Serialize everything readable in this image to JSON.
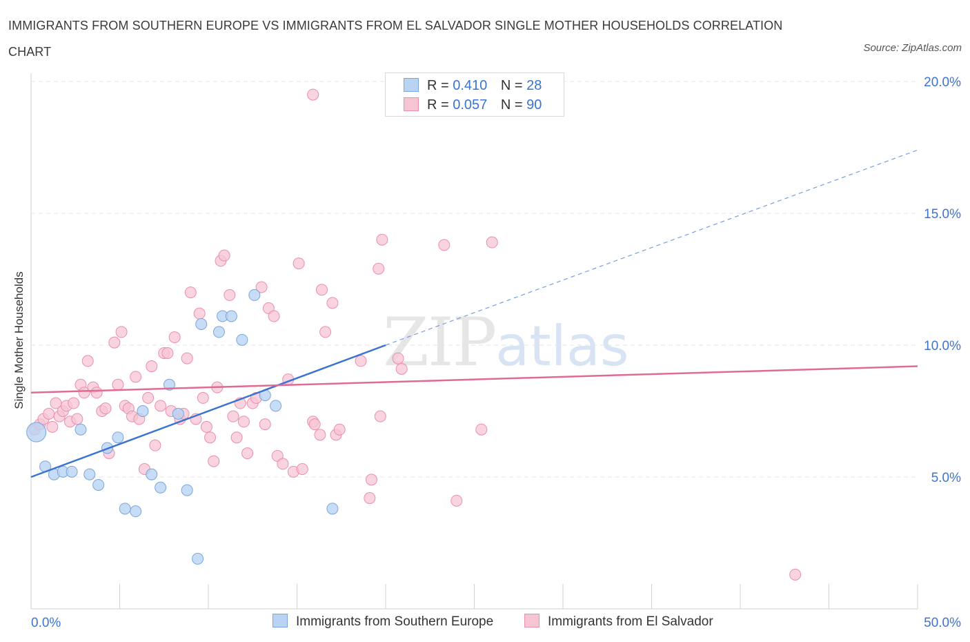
{
  "title": "IMMIGRANTS FROM SOUTHERN EUROPE VS IMMIGRANTS FROM EL SALVADOR SINGLE MOTHER HOUSEHOLDS CORRELATION CHART",
  "source": "Source: ZipAtlas.com",
  "watermark": {
    "zip": "ZIP",
    "atlas": "atlas"
  },
  "legend": {
    "row1": {
      "r_label": "R =",
      "r_value": "0.410",
      "n_label": "N =",
      "n_value": "28"
    },
    "row2": {
      "r_label": "R =",
      "r_value": "0.057",
      "n_label": "N =",
      "n_value": "90"
    }
  },
  "colors": {
    "blue_fill": "#b9d3f3",
    "blue_stroke": "#7aa4dd",
    "blue_line": "#3b73d1",
    "pink_fill": "#f7c4d4",
    "pink_stroke": "#e88fab",
    "pink_line": "#e06a93",
    "axis_text": "#3b73d1",
    "grid": "#e3e3e3"
  },
  "chart_data": {
    "type": "scatter",
    "title": "IMMIGRANTS FROM SOUTHERN EUROPE VS IMMIGRANTS FROM EL SALVADOR SINGLE MOTHER HOUSEHOLDS CORRELATION CHART",
    "xlabel": "",
    "ylabel": "Single Mother Households",
    "xlim": [
      0,
      50
    ],
    "ylim": [
      0,
      20
    ],
    "x_tick_labels": [
      "0.0%",
      "50.0%"
    ],
    "y_ticks": [
      5,
      10,
      15,
      20
    ],
    "y_tick_labels": [
      "5.0%",
      "10.0%",
      "15.0%",
      "20.0%"
    ],
    "grid": true,
    "series": [
      {
        "name": "Immigrants from Southern Europe",
        "color": "#b9d3f3",
        "r": 0.41,
        "n": 28,
        "points": [
          [
            0.3,
            6.7
          ],
          [
            0.8,
            5.4
          ],
          [
            1.3,
            5.1
          ],
          [
            1.8,
            5.2
          ],
          [
            2.3,
            5.2
          ],
          [
            2.8,
            6.8
          ],
          [
            3.3,
            5.1
          ],
          [
            3.8,
            4.7
          ],
          [
            4.3,
            6.1
          ],
          [
            4.9,
            6.5
          ],
          [
            5.3,
            3.8
          ],
          [
            5.9,
            3.7
          ],
          [
            6.3,
            7.5
          ],
          [
            6.8,
            5.1
          ],
          [
            7.3,
            4.6
          ],
          [
            7.8,
            8.5
          ],
          [
            8.3,
            7.4
          ],
          [
            8.8,
            4.5
          ],
          [
            9.4,
            1.9
          ],
          [
            9.6,
            10.8
          ],
          [
            10.6,
            10.5
          ],
          [
            10.8,
            11.1
          ],
          [
            11.3,
            11.1
          ],
          [
            11.9,
            10.2
          ],
          [
            12.6,
            11.9
          ],
          [
            13.2,
            8.1
          ],
          [
            13.8,
            7.7
          ],
          [
            17.0,
            3.8
          ]
        ],
        "trend": {
          "x": [
            0,
            20
          ],
          "y": [
            5.0,
            10.0
          ],
          "dashed_extension": {
            "x": [
              20,
              50
            ],
            "y": [
              10.0,
              17.4
            ]
          }
        }
      },
      {
        "name": "Immigrants from El Salvador",
        "color": "#f7c4d4",
        "r": 0.057,
        "n": 90,
        "points": [
          [
            0.2,
            6.8
          ],
          [
            0.5,
            7.0
          ],
          [
            0.7,
            7.2
          ],
          [
            1.0,
            7.4
          ],
          [
            1.2,
            6.9
          ],
          [
            1.4,
            7.8
          ],
          [
            1.6,
            7.3
          ],
          [
            1.8,
            7.5
          ],
          [
            2.0,
            7.7
          ],
          [
            2.2,
            7.1
          ],
          [
            2.4,
            7.8
          ],
          [
            2.6,
            7.2
          ],
          [
            2.8,
            8.5
          ],
          [
            3.0,
            8.2
          ],
          [
            3.2,
            9.4
          ],
          [
            3.5,
            8.4
          ],
          [
            3.7,
            8.2
          ],
          [
            4.0,
            7.5
          ],
          [
            4.2,
            7.6
          ],
          [
            4.4,
            5.9
          ],
          [
            4.7,
            10.1
          ],
          [
            4.9,
            8.5
          ],
          [
            5.1,
            10.5
          ],
          [
            5.3,
            7.7
          ],
          [
            5.5,
            7.6
          ],
          [
            5.7,
            7.3
          ],
          [
            5.9,
            8.8
          ],
          [
            6.1,
            7.2
          ],
          [
            6.4,
            5.3
          ],
          [
            6.6,
            8.0
          ],
          [
            6.8,
            9.2
          ],
          [
            7.0,
            6.2
          ],
          [
            7.3,
            7.7
          ],
          [
            7.5,
            9.7
          ],
          [
            7.7,
            9.7
          ],
          [
            7.9,
            7.5
          ],
          [
            8.1,
            10.3
          ],
          [
            8.4,
            7.2
          ],
          [
            8.6,
            7.4
          ],
          [
            8.8,
            9.5
          ],
          [
            9.0,
            12.0
          ],
          [
            9.3,
            7.2
          ],
          [
            9.5,
            11.2
          ],
          [
            9.7,
            8.0
          ],
          [
            9.9,
            6.9
          ],
          [
            10.1,
            6.5
          ],
          [
            10.3,
            5.6
          ],
          [
            10.5,
            8.4
          ],
          [
            10.7,
            13.2
          ],
          [
            10.9,
            13.4
          ],
          [
            11.2,
            11.9
          ],
          [
            11.4,
            7.3
          ],
          [
            11.6,
            6.5
          ],
          [
            11.8,
            7.8
          ],
          [
            12.0,
            7.1
          ],
          [
            12.2,
            5.9
          ],
          [
            12.5,
            7.8
          ],
          [
            12.7,
            8.0
          ],
          [
            13.0,
            12.2
          ],
          [
            13.2,
            7.0
          ],
          [
            13.4,
            11.4
          ],
          [
            13.7,
            11.1
          ],
          [
            13.9,
            5.8
          ],
          [
            14.2,
            5.5
          ],
          [
            14.5,
            8.7
          ],
          [
            14.8,
            5.2
          ],
          [
            15.1,
            13.1
          ],
          [
            15.3,
            5.3
          ],
          [
            15.9,
            7.1
          ],
          [
            16.3,
            6.6
          ],
          [
            16.4,
            12.1
          ],
          [
            16.6,
            10.5
          ],
          [
            17.0,
            11.6
          ],
          [
            17.2,
            6.6
          ],
          [
            17.4,
            6.8
          ],
          [
            18.6,
            9.4
          ],
          [
            19.1,
            4.2
          ],
          [
            19.2,
            4.9
          ],
          [
            19.6,
            12.9
          ],
          [
            19.7,
            7.3
          ],
          [
            19.8,
            14.0
          ],
          [
            20.7,
            9.5
          ],
          [
            20.9,
            9.1
          ],
          [
            23.3,
            13.8
          ],
          [
            24.0,
            4.1
          ],
          [
            25.4,
            6.8
          ],
          [
            26.0,
            13.9
          ],
          [
            15.9,
            19.5
          ],
          [
            43.1,
            1.3
          ],
          [
            16.0,
            7.0
          ]
        ],
        "trend": {
          "x": [
            0,
            50
          ],
          "y": [
            8.2,
            9.2
          ]
        }
      }
    ]
  },
  "bottom_legend": {
    "item1": "Immigrants from Southern Europe",
    "item2": "Immigrants from El Salvador"
  }
}
